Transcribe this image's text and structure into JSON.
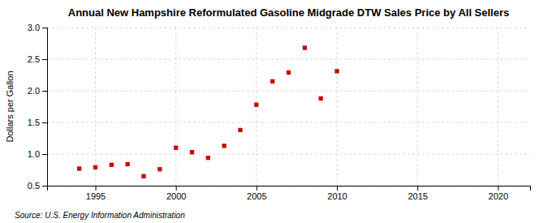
{
  "chart_data": {
    "type": "scatter",
    "title": "Annual New Hampshire Reformulated Gasoline Midgrade DTW Sales Price by All Sellers",
    "y_label": "Dollars per Gallon",
    "source": "Source: U.S. Energy Information Administration",
    "x": [
      1994,
      1995,
      1996,
      1997,
      1998,
      1999,
      2000,
      2001,
      2002,
      2003,
      2004,
      2005,
      2006,
      2007,
      2008,
      2009,
      2010
    ],
    "values": [
      0.77,
      0.79,
      0.83,
      0.84,
      0.65,
      0.76,
      1.1,
      1.03,
      0.94,
      1.13,
      1.38,
      1.78,
      2.15,
      2.29,
      2.68,
      1.88,
      2.31
    ],
    "color": "#cc0000",
    "marker": "square",
    "xlim": [
      1992,
      2022
    ],
    "ylim": [
      0.5,
      3.0
    ],
    "xticks": [
      1995,
      2000,
      2005,
      2010,
      2015,
      2020
    ],
    "yticks": [
      0.5,
      {
        "value": 1.0,
        "label": "1.0"
      },
      1.5,
      {
        "value": 2.0,
        "label": "2.0"
      },
      2.5,
      {
        "value": 3.0,
        "label": "3.0"
      }
    ],
    "grid": true
  }
}
